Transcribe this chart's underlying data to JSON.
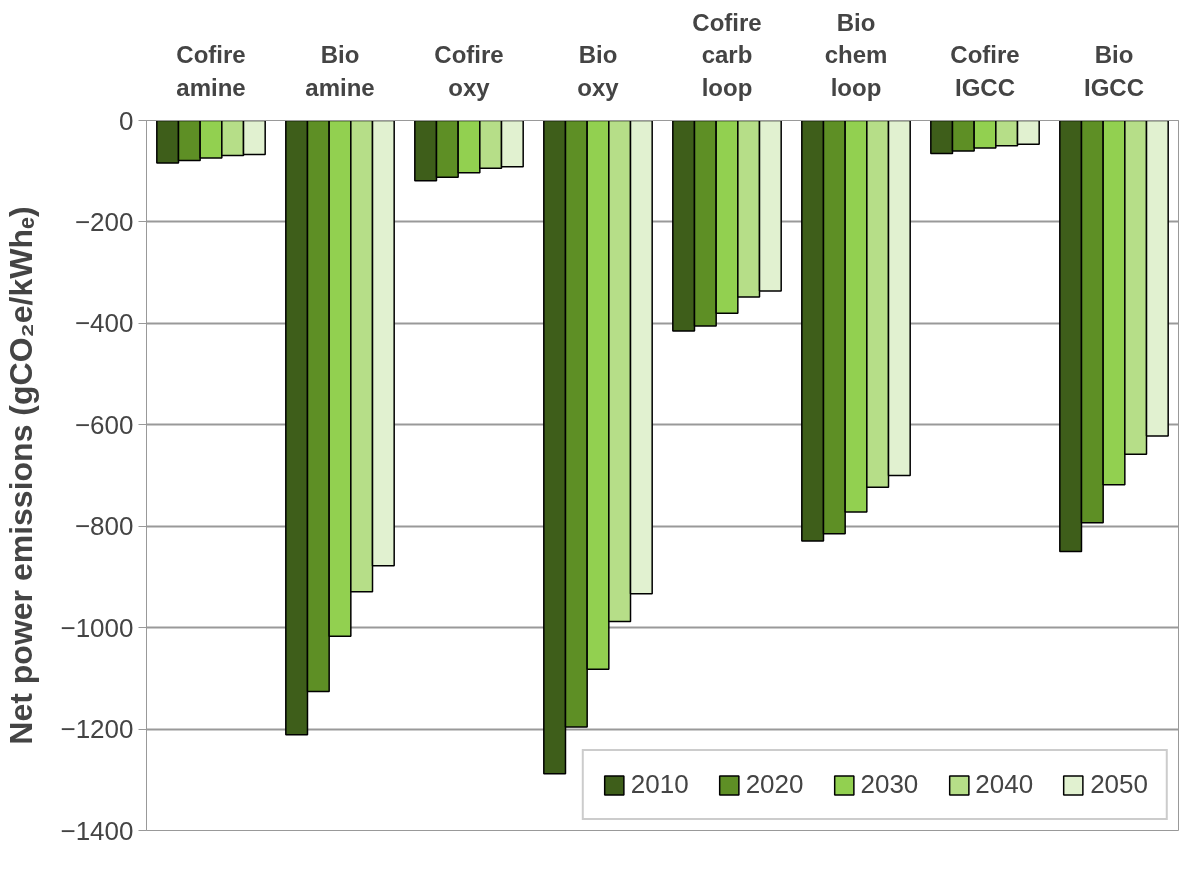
{
  "chart_data": {
    "type": "bar",
    "ylabel": "Net power emissions (gCO₂e/kWhₑ)",
    "categories": [
      "Cofire amine",
      "Bio amine",
      "Cofire oxy",
      "Bio oxy",
      "Cofire carb loop",
      "Bio chem loop",
      "Cofire IGCC",
      "Bio IGCC"
    ],
    "series": [
      {
        "name": "2010",
        "color": "#3e5e1a",
        "values": [
          -84,
          -1211,
          -119,
          -1288,
          -415,
          -829,
          -65,
          -850
        ]
      },
      {
        "name": "2020",
        "color": "#5e8f25",
        "values": [
          -79,
          -1126,
          -112,
          -1196,
          -405,
          -815,
          -60,
          -793
        ]
      },
      {
        "name": "2030",
        "color": "#92d050",
        "values": [
          -74,
          -1017,
          -103,
          -1082,
          -380,
          -772,
          -54,
          -718
        ]
      },
      {
        "name": "2040",
        "color": "#b6de88",
        "values": [
          -69,
          -929,
          -94,
          -988,
          -348,
          -723,
          -50,
          -658
        ]
      },
      {
        "name": "2050",
        "color": "#e1f1d0",
        "values": [
          -67,
          -878,
          -91,
          -933,
          -336,
          -700,
          -47,
          -622
        ]
      }
    ],
    "ylim": [
      -1400,
      0
    ],
    "yticks": [
      -1400,
      -1200,
      -1000,
      -800,
      -600,
      -400,
      -200,
      0
    ],
    "grid": "y",
    "legend": "bottom right"
  }
}
